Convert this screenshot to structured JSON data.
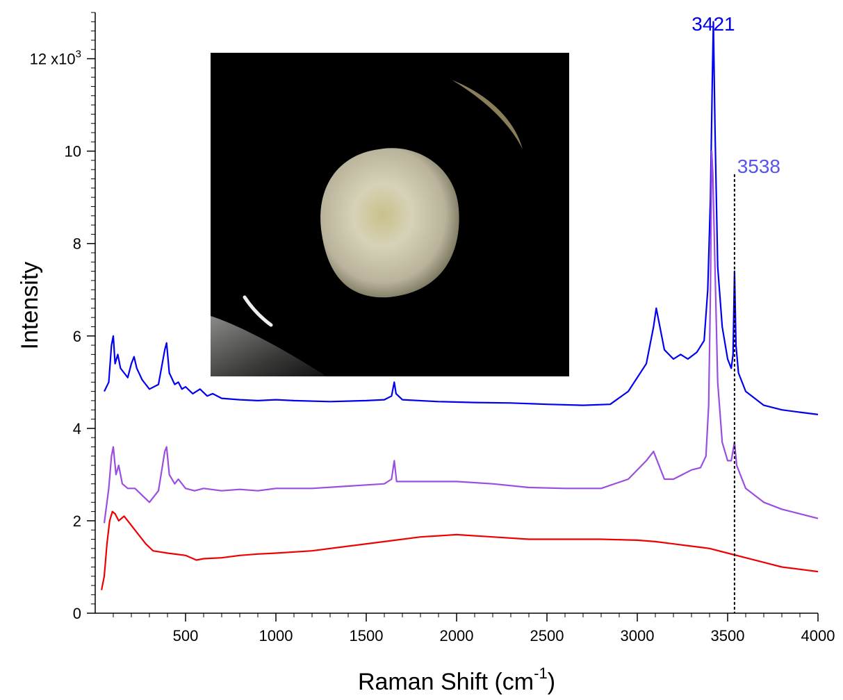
{
  "chart_data": {
    "type": "line",
    "title": "",
    "xlabel": "Raman Shift (cm",
    "xlabel_sup": "-1",
    "xlabel_close": ")",
    "ylabel": "Intensity",
    "xlim": [
      0,
      4000
    ],
    "ylim": [
      0,
      13000
    ],
    "x_ticks": [
      500,
      1000,
      1500,
      2000,
      2500,
      3000,
      3500,
      4000
    ],
    "y_ticks": [
      0,
      2000,
      4000,
      6000,
      8000,
      10000,
      12000
    ],
    "y_tick_labels": [
      "0",
      "2",
      "4",
      "6",
      "8",
      "10",
      "12 x10"
    ],
    "y_multiplier_sup": "3",
    "grid": false,
    "legend": "none",
    "series": [
      {
        "color": "#0000ee",
        "points": [
          [
            50,
            4800
          ],
          [
            75,
            5000
          ],
          [
            90,
            5800
          ],
          [
            100,
            6000
          ],
          [
            110,
            5400
          ],
          [
            125,
            5600
          ],
          [
            140,
            5300
          ],
          [
            160,
            5200
          ],
          [
            180,
            5100
          ],
          [
            200,
            5400
          ],
          [
            215,
            5550
          ],
          [
            230,
            5300
          ],
          [
            260,
            5050
          ],
          [
            300,
            4850
          ],
          [
            350,
            4950
          ],
          [
            385,
            5700
          ],
          [
            395,
            5850
          ],
          [
            410,
            5200
          ],
          [
            440,
            4950
          ],
          [
            460,
            5000
          ],
          [
            480,
            4850
          ],
          [
            500,
            4900
          ],
          [
            540,
            4750
          ],
          [
            580,
            4850
          ],
          [
            620,
            4700
          ],
          [
            650,
            4750
          ],
          [
            700,
            4650
          ],
          [
            800,
            4620
          ],
          [
            900,
            4600
          ],
          [
            1000,
            4620
          ],
          [
            1100,
            4600
          ],
          [
            1300,
            4580
          ],
          [
            1500,
            4600
          ],
          [
            1600,
            4620
          ],
          [
            1640,
            4700
          ],
          [
            1655,
            5000
          ],
          [
            1665,
            4750
          ],
          [
            1700,
            4620
          ],
          [
            1900,
            4580
          ],
          [
            2100,
            4560
          ],
          [
            2300,
            4550
          ],
          [
            2500,
            4520
          ],
          [
            2700,
            4500
          ],
          [
            2850,
            4520
          ],
          [
            2950,
            4800
          ],
          [
            3050,
            5400
          ],
          [
            3090,
            6200
          ],
          [
            3105,
            6600
          ],
          [
            3120,
            6300
          ],
          [
            3150,
            5700
          ],
          [
            3200,
            5500
          ],
          [
            3240,
            5600
          ],
          [
            3280,
            5500
          ],
          [
            3330,
            5650
          ],
          [
            3370,
            5900
          ],
          [
            3390,
            7000
          ],
          [
            3405,
            9000
          ],
          [
            3415,
            11500
          ],
          [
            3421,
            12800
          ],
          [
            3430,
            10500
          ],
          [
            3445,
            7500
          ],
          [
            3470,
            6200
          ],
          [
            3500,
            5500
          ],
          [
            3520,
            5300
          ],
          [
            3530,
            5600
          ],
          [
            3538,
            7400
          ],
          [
            3546,
            5800
          ],
          [
            3560,
            5200
          ],
          [
            3600,
            4800
          ],
          [
            3700,
            4500
          ],
          [
            3800,
            4400
          ],
          [
            3900,
            4350
          ],
          [
            4000,
            4300
          ]
        ]
      },
      {
        "color": "#9b4de0",
        "points": [
          [
            50,
            1950
          ],
          [
            75,
            2700
          ],
          [
            90,
            3400
          ],
          [
            100,
            3600
          ],
          [
            115,
            3000
          ],
          [
            130,
            3200
          ],
          [
            150,
            2800
          ],
          [
            180,
            2700
          ],
          [
            220,
            2700
          ],
          [
            260,
            2550
          ],
          [
            300,
            2400
          ],
          [
            350,
            2650
          ],
          [
            385,
            3500
          ],
          [
            395,
            3600
          ],
          [
            410,
            3000
          ],
          [
            440,
            2800
          ],
          [
            460,
            2900
          ],
          [
            500,
            2700
          ],
          [
            550,
            2650
          ],
          [
            600,
            2700
          ],
          [
            700,
            2650
          ],
          [
            800,
            2680
          ],
          [
            900,
            2650
          ],
          [
            1000,
            2700
          ],
          [
            1200,
            2700
          ],
          [
            1400,
            2750
          ],
          [
            1600,
            2800
          ],
          [
            1640,
            2900
          ],
          [
            1655,
            3300
          ],
          [
            1668,
            2850
          ],
          [
            1700,
            2850
          ],
          [
            1800,
            2850
          ],
          [
            2000,
            2850
          ],
          [
            2200,
            2800
          ],
          [
            2400,
            2720
          ],
          [
            2600,
            2700
          ],
          [
            2800,
            2700
          ],
          [
            2950,
            2900
          ],
          [
            3050,
            3300
          ],
          [
            3090,
            3500
          ],
          [
            3110,
            3300
          ],
          [
            3150,
            2900
          ],
          [
            3200,
            2900
          ],
          [
            3250,
            3000
          ],
          [
            3300,
            3100
          ],
          [
            3350,
            3150
          ],
          [
            3380,
            3400
          ],
          [
            3395,
            4500
          ],
          [
            3405,
            7000
          ],
          [
            3412,
            10000
          ],
          [
            3418,
            9500
          ],
          [
            3430,
            7500
          ],
          [
            3445,
            5000
          ],
          [
            3470,
            3700
          ],
          [
            3500,
            3300
          ],
          [
            3520,
            3300
          ],
          [
            3538,
            3700
          ],
          [
            3550,
            3200
          ],
          [
            3600,
            2700
          ],
          [
            3700,
            2400
          ],
          [
            3800,
            2250
          ],
          [
            3900,
            2150
          ],
          [
            4000,
            2050
          ]
        ]
      },
      {
        "color": "#ee0000",
        "points": [
          [
            35,
            500
          ],
          [
            50,
            800
          ],
          [
            65,
            1500
          ],
          [
            80,
            2000
          ],
          [
            95,
            2200
          ],
          [
            110,
            2150
          ],
          [
            130,
            2000
          ],
          [
            160,
            2100
          ],
          [
            200,
            1900
          ],
          [
            240,
            1700
          ],
          [
            280,
            1500
          ],
          [
            320,
            1350
          ],
          [
            400,
            1300
          ],
          [
            500,
            1250
          ],
          [
            560,
            1150
          ],
          [
            600,
            1180
          ],
          [
            700,
            1200
          ],
          [
            800,
            1250
          ],
          [
            900,
            1280
          ],
          [
            1000,
            1300
          ],
          [
            1200,
            1350
          ],
          [
            1400,
            1450
          ],
          [
            1600,
            1550
          ],
          [
            1800,
            1650
          ],
          [
            2000,
            1700
          ],
          [
            2200,
            1650
          ],
          [
            2400,
            1600
          ],
          [
            2600,
            1600
          ],
          [
            2800,
            1600
          ],
          [
            3000,
            1580
          ],
          [
            3100,
            1550
          ],
          [
            3200,
            1500
          ],
          [
            3300,
            1450
          ],
          [
            3400,
            1400
          ],
          [
            3500,
            1300
          ],
          [
            3600,
            1200
          ],
          [
            3700,
            1100
          ],
          [
            3800,
            1000
          ],
          [
            3900,
            950
          ],
          [
            4000,
            900
          ]
        ]
      }
    ],
    "annotations": [
      {
        "text": "3421",
        "x": 3421,
        "color": "#0000ee"
      },
      {
        "text": "3538",
        "x": 3538,
        "color": "#5555ee",
        "dashed_line": true,
        "line_top": 9500
      }
    ]
  }
}
